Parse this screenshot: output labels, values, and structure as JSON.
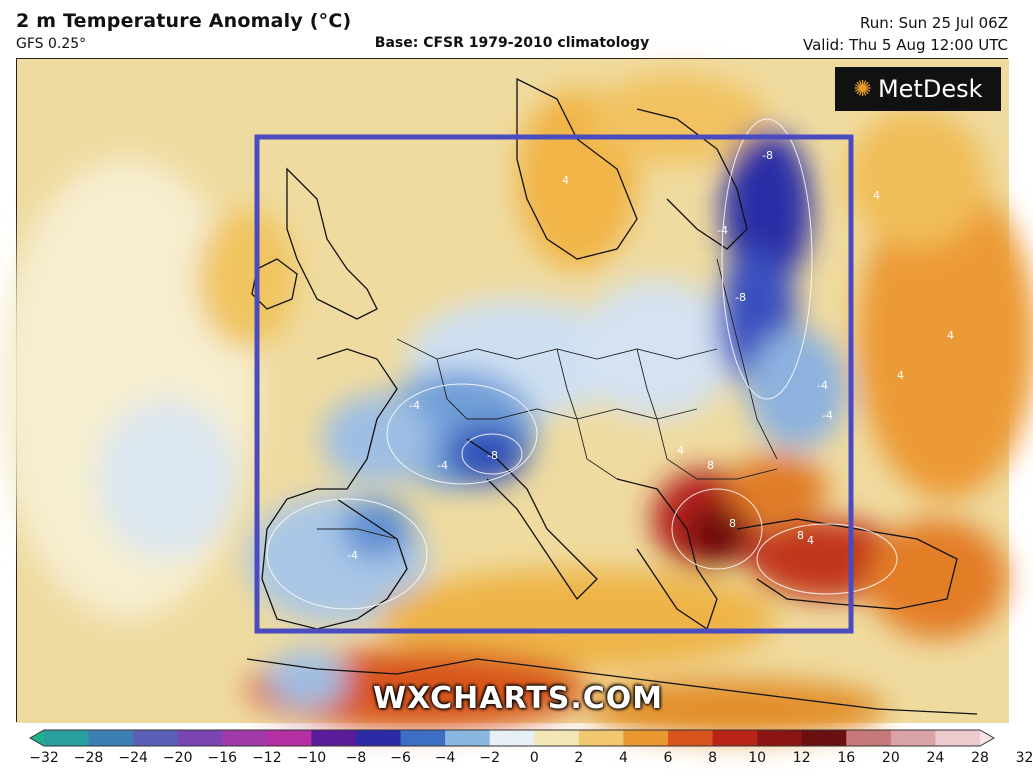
{
  "header": {
    "title": "2 m Temperature Anomaly (°C)",
    "model": "GFS 0.25°",
    "base": "Base: CFSR 1979-2010 climatology",
    "run": "Run: Sun 25 Jul 06Z",
    "valid": "Valid: Thu 5 Aug 12:00 UTC"
  },
  "branding": {
    "logo_text": "MetDesk",
    "watermark": "WXCHARTS.COM"
  },
  "colorbar": {
    "ticks": [
      "−32",
      "−28",
      "−24",
      "−20",
      "−16",
      "−12",
      "−10",
      "−8",
      "−6",
      "−4",
      "−2",
      "0",
      "2",
      "4",
      "6",
      "8",
      "10",
      "12",
      "16",
      "20",
      "24",
      "28",
      "32"
    ],
    "colors": [
      "#1fb08e",
      "#2a9fa0",
      "#3b7fb3",
      "#5b5fb8",
      "#7a45b3",
      "#a13aa8",
      "#b52fa3",
      "#5a1c9a",
      "#2d2aa6",
      "#3c6fc4",
      "#8bb6e0",
      "#e8eef6",
      "#f4e7b7",
      "#f1c76f",
      "#e9972f",
      "#d8541c",
      "#b82418",
      "#8c1413",
      "#6a1010",
      "#c7787a",
      "#d9a2a6",
      "#eccacd",
      "#f5e4e6"
    ],
    "colors_meaning": "colour scale bands"
  },
  "map": {
    "contour_labels": [
      "-4",
      "-8",
      "-4",
      "-4",
      "-8",
      "-4",
      "4",
      "8",
      "8",
      "4",
      "-4",
      "4",
      "4",
      "4",
      "8",
      "-4",
      "-8",
      "4"
    ],
    "highlight_box_color": "#4b4bc0"
  }
}
